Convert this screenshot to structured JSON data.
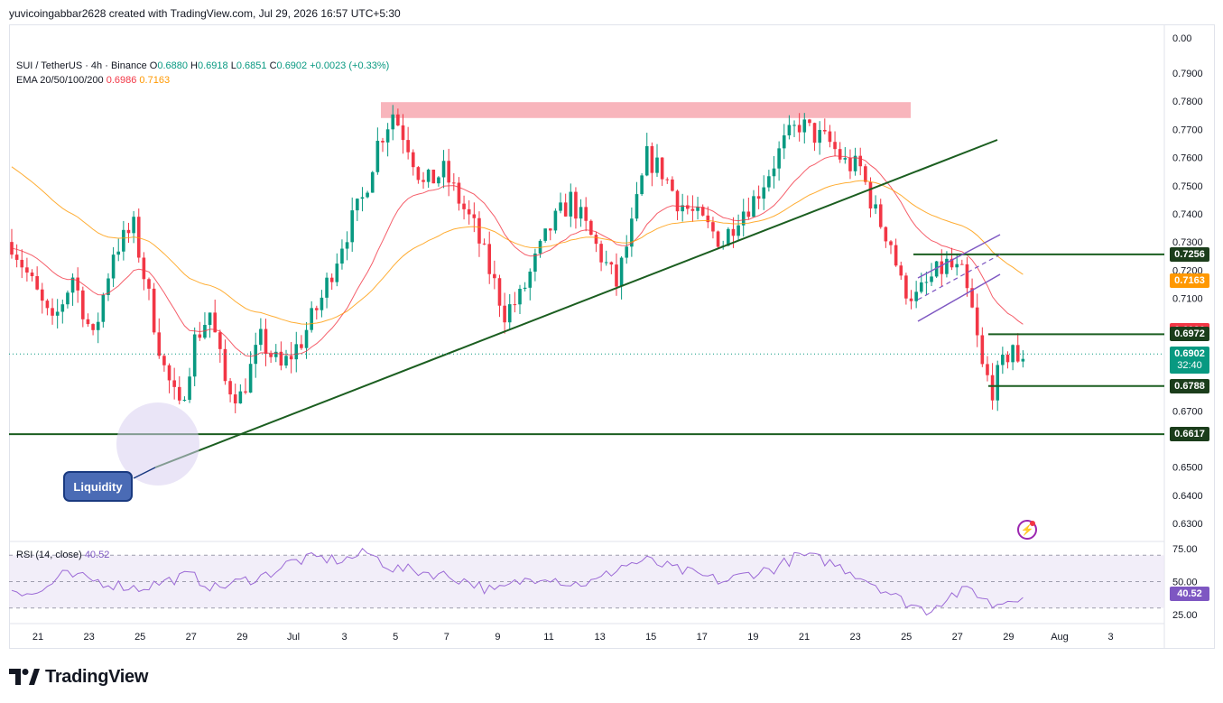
{
  "header": {
    "author_line": "yuvicoingabbar2628 created with TradingView.com, Jul 29, 2026 16:57 UTC+5:30"
  },
  "legend": {
    "symbol": "SUI / TetherUS · 4h · Binance",
    "open_label": "O",
    "open": "0.6880",
    "high_label": "H",
    "high": "0.6918",
    "low_label": "L",
    "low": "0.6851",
    "close_label": "C",
    "close": "0.6902",
    "change": "+0.0023 (+0.33%)",
    "ema_label": "EMA 20/50/100/200",
    "ema_fast": "0.6986",
    "ema_slow": "0.7163"
  },
  "rsi_legend": {
    "label": "RSI (14, close)",
    "value": "40.52"
  },
  "annotation": {
    "liquidity": "Liquidity"
  },
  "logo": {
    "text": "TradingView"
  },
  "colors": {
    "up": "#089981",
    "down": "#f23645",
    "ema_fast": "#f23645",
    "ema_slow": "#ff9800",
    "trendline": "#1b5e20",
    "resistance_zone": "#f7a8b0",
    "channel": "#7e57c2",
    "rsi": "#9c6ad6",
    "rsi_band": "#ede7f6"
  },
  "chart_data": {
    "type": "candlestick",
    "symbol": "SUI / TetherUS",
    "interval": "4h",
    "exchange": "Binance",
    "y_axis": {
      "range": [
        0.62,
        0.8
      ],
      "ticks": [
        "0.7900",
        "0.7800",
        "0.7700",
        "0.7600",
        "0.7500",
        "0.7400",
        "0.7300",
        "0.7200",
        "0.7100",
        "0.6700",
        "0.6500",
        "0.6400",
        "0.6300"
      ],
      "top_label": "0.00"
    },
    "x_axis": {
      "labels": [
        "21",
        "23",
        "25",
        "27",
        "29",
        "Jul",
        "3",
        "5",
        "7",
        "9",
        "11",
        "13",
        "15",
        "17",
        "19",
        "21",
        "23",
        "25",
        "27",
        "29",
        "Aug",
        "3"
      ]
    },
    "price_levels": [
      {
        "value": 0.7256,
        "label": "0.7256",
        "kind": "line"
      },
      {
        "value": 0.7163,
        "label": "0.7163",
        "kind": "ema"
      },
      {
        "value": 0.6986,
        "label": "0.6986",
        "kind": "ema"
      },
      {
        "value": 0.6972,
        "label": "0.6972",
        "kind": "line"
      },
      {
        "value": 0.6788,
        "label": "0.6788",
        "kind": "line"
      },
      {
        "value": 0.6617,
        "label": "0.6617",
        "kind": "line"
      }
    ],
    "last_price": {
      "value": 0.6902,
      "label": "0.6902",
      "countdown": "32:40"
    },
    "resistance_zone": [
      0.775,
      0.78
    ],
    "rsi": {
      "ticks": [
        "75.00",
        "50.00",
        "25.00"
      ],
      "last": "40.52",
      "upper": 70,
      "lower": 30
    },
    "anchors": [
      [
        0,
        0.73
      ],
      [
        4,
        0.715
      ],
      [
        8,
        0.7
      ],
      [
        12,
        0.718
      ],
      [
        16,
        0.695
      ],
      [
        20,
        0.727
      ],
      [
        24,
        0.735
      ],
      [
        27,
        0.71
      ],
      [
        30,
        0.685
      ],
      [
        33,
        0.67
      ],
      [
        36,
        0.695
      ],
      [
        39,
        0.705
      ],
      [
        42,
        0.68
      ],
      [
        45,
        0.675
      ],
      [
        49,
        0.695
      ],
      [
        53,
        0.685
      ],
      [
        57,
        0.695
      ],
      [
        61,
        0.71
      ],
      [
        65,
        0.73
      ],
      [
        69,
        0.745
      ],
      [
        72,
        0.765
      ],
      [
        75,
        0.776
      ],
      [
        78,
        0.765
      ],
      [
        81,
        0.75
      ],
      [
        85,
        0.755
      ],
      [
        88,
        0.745
      ],
      [
        91,
        0.735
      ],
      [
        94,
        0.72
      ],
      [
        97,
        0.705
      ],
      [
        100,
        0.71
      ],
      [
        103,
        0.723
      ],
      [
        106,
        0.735
      ],
      [
        110,
        0.745
      ],
      [
        113,
        0.735
      ],
      [
        116,
        0.725
      ],
      [
        119,
        0.715
      ],
      [
        122,
        0.735
      ],
      [
        125,
        0.76
      ],
      [
        128,
        0.755
      ],
      [
        131,
        0.745
      ],
      [
        134,
        0.74
      ],
      [
        137,
        0.735
      ],
      [
        140,
        0.73
      ],
      [
        143,
        0.74
      ],
      [
        146,
        0.745
      ],
      [
        149,
        0.755
      ],
      [
        152,
        0.765
      ],
      [
        155,
        0.772
      ],
      [
        158,
        0.768
      ],
      [
        161,
        0.765
      ],
      [
        164,
        0.758
      ],
      [
        167,
        0.756
      ],
      [
        170,
        0.74
      ],
      [
        173,
        0.73
      ],
      [
        175,
        0.715
      ],
      [
        178,
        0.71
      ],
      [
        181,
        0.717
      ],
      [
        184,
        0.722
      ],
      [
        187,
        0.718
      ],
      [
        189,
        0.705
      ],
      [
        191,
        0.685
      ],
      [
        193,
        0.678
      ],
      [
        195,
        0.686
      ],
      [
        197,
        0.694
      ],
      [
        198,
        0.685
      ],
      [
        199,
        0.6902
      ]
    ],
    "rsi_anchors": [
      [
        0,
        45
      ],
      [
        5,
        40
      ],
      [
        10,
        55
      ],
      [
        15,
        52
      ],
      [
        20,
        48
      ],
      [
        25,
        45
      ],
      [
        30,
        50
      ],
      [
        35,
        55
      ],
      [
        40,
        45
      ],
      [
        45,
        50
      ],
      [
        50,
        55
      ],
      [
        55,
        65
      ],
      [
        60,
        68
      ],
      [
        65,
        66
      ],
      [
        70,
        72
      ],
      [
        75,
        60
      ],
      [
        80,
        58
      ],
      [
        85,
        55
      ],
      [
        90,
        50
      ],
      [
        95,
        42
      ],
      [
        100,
        50
      ],
      [
        105,
        55
      ],
      [
        110,
        48
      ],
      [
        115,
        50
      ],
      [
        120,
        62
      ],
      [
        125,
        66
      ],
      [
        130,
        60
      ],
      [
        135,
        55
      ],
      [
        140,
        50
      ],
      [
        145,
        56
      ],
      [
        150,
        60
      ],
      [
        155,
        70
      ],
      [
        160,
        66
      ],
      [
        165,
        58
      ],
      [
        170,
        48
      ],
      [
        175,
        36
      ],
      [
        180,
        28
      ],
      [
        185,
        40
      ],
      [
        189,
        44
      ],
      [
        193,
        32
      ],
      [
        196,
        36
      ],
      [
        199,
        40.5
      ]
    ]
  }
}
